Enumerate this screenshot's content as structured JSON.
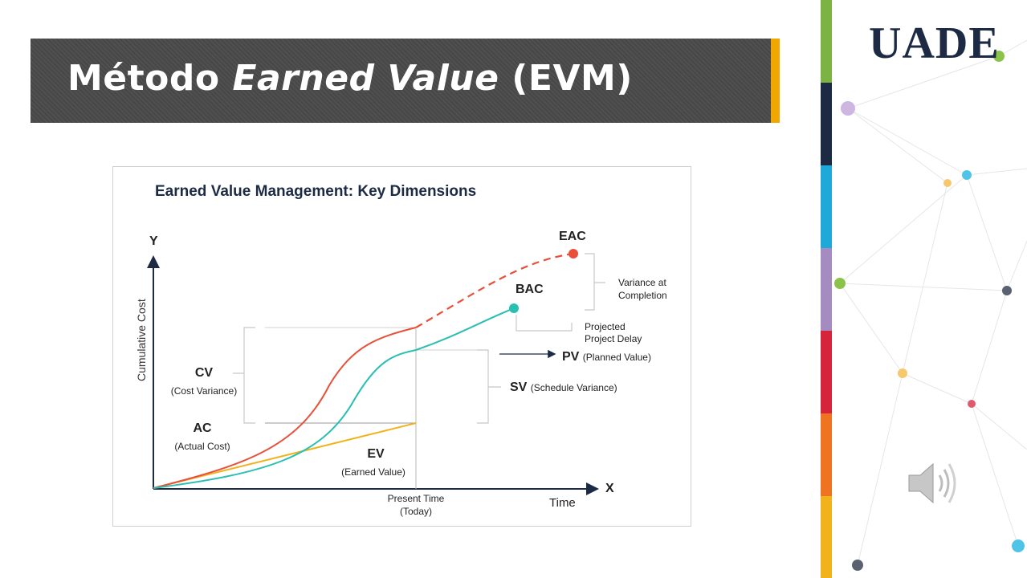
{
  "slide": {
    "title_prefix": "Método ",
    "title_italic": "Earned Value",
    "title_suffix": " (EVM)",
    "logo": "UADE",
    "speaker_icon": "speaker-icon"
  },
  "figure": {
    "title": "Earned Value Management: Key Dimensions",
    "y_axis_letter": "Y",
    "x_axis_letter": "X",
    "y_axis_label": "Cumulative Cost",
    "x_axis_label": "Time",
    "present_time": "Present Time",
    "present_time_sub": "(Today)",
    "eac": "EAC",
    "bac": "BAC",
    "variance_at_completion_1": "Variance at",
    "variance_at_completion_2": "Completion",
    "projected_delay_1": "Projected",
    "projected_delay_2": "Project Delay",
    "pv": "PV",
    "pv_sub": "(Planned Value)",
    "sv": "SV",
    "sv_sub": "(Schedule Variance)",
    "cv": "CV",
    "cv_sub": "(Cost Variance)",
    "ac": "AC",
    "ac_sub": "(Actual Cost)",
    "ev": "EV",
    "ev_sub": "(Earned Value)",
    "colors": {
      "ac_curve": "#e8503a",
      "pv_curve": "#2bbfb3",
      "ev_line": "#f2b21b",
      "title_bar": "#4a4a4a",
      "accent": "#f0a800"
    }
  }
}
